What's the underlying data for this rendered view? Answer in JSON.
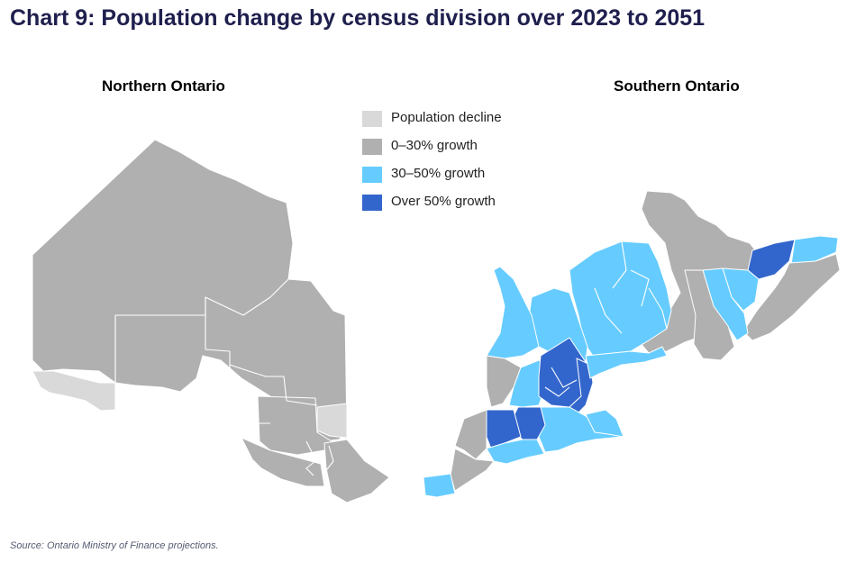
{
  "title": "Chart 9: Population change by census division over 2023 to 2051",
  "panels": {
    "north": "Northern Ontario",
    "south": "Southern Ontario"
  },
  "legend": [
    {
      "label": "Population decline",
      "color": "#d9d9d9"
    },
    {
      "label": "0–30% growth",
      "color": "#b0b0b0"
    },
    {
      "label": "30–50% growth",
      "color": "#66ccff"
    },
    {
      "label": "Over 50% growth",
      "color": "#3366cc"
    }
  ],
  "source": "Source: Ontario Ministry of Finance projections."
}
